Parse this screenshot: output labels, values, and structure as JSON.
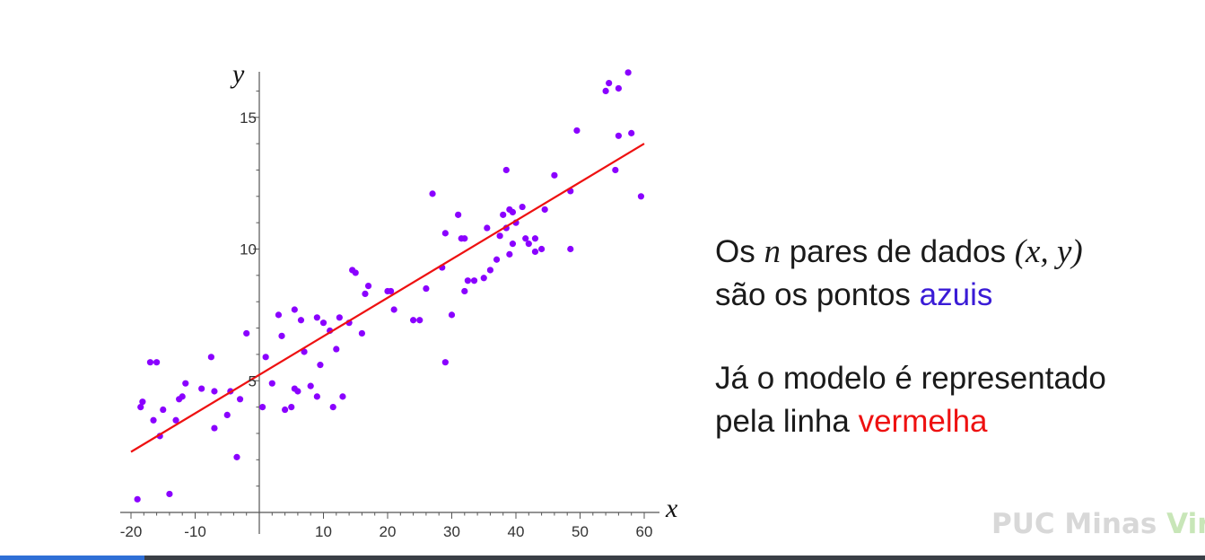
{
  "chart_data": {
    "type": "scatter",
    "xlabel": "x",
    "ylabel": "y",
    "x_ticks": [
      -20,
      -10,
      10,
      20,
      30,
      40,
      50,
      60
    ],
    "y_ticks": [
      5,
      10,
      15
    ],
    "xlim": [
      -21,
      61
    ],
    "ylim": [
      0.5,
      17
    ],
    "grid": false,
    "series": [
      {
        "kind": "points",
        "color": "#8a00ff",
        "points": [
          [
            -19,
            0.5
          ],
          [
            -18.5,
            4.0
          ],
          [
            -18.2,
            4.2
          ],
          [
            -17,
            5.7
          ],
          [
            -16.5,
            3.5
          ],
          [
            -16,
            5.7
          ],
          [
            -15.5,
            2.9
          ],
          [
            -15,
            3.9
          ],
          [
            -14,
            0.7
          ],
          [
            -13,
            3.5
          ],
          [
            -12.5,
            4.3
          ],
          [
            -12,
            4.4
          ],
          [
            -11.5,
            4.9
          ],
          [
            -9,
            4.7
          ],
          [
            -7.5,
            5.9
          ],
          [
            -7,
            3.2
          ],
          [
            -7,
            4.6
          ],
          [
            -5,
            3.7
          ],
          [
            -4.5,
            4.6
          ],
          [
            -3.5,
            2.1
          ],
          [
            -3,
            4.3
          ],
          [
            -2,
            6.8
          ],
          [
            0.5,
            4.0
          ],
          [
            1,
            5.9
          ],
          [
            2,
            4.9
          ],
          [
            3,
            7.5
          ],
          [
            3.5,
            6.7
          ],
          [
            4,
            3.9
          ],
          [
            5,
            4.0
          ],
          [
            5.5,
            4.7
          ],
          [
            5.5,
            7.7
          ],
          [
            6,
            4.6
          ],
          [
            6.5,
            7.3
          ],
          [
            7,
            6.1
          ],
          [
            8,
            4.8
          ],
          [
            9,
            7.4
          ],
          [
            9,
            4.4
          ],
          [
            9.5,
            5.6
          ],
          [
            10,
            7.2
          ],
          [
            11,
            6.9
          ],
          [
            11.5,
            4.0
          ],
          [
            12,
            6.2
          ],
          [
            12.5,
            7.4
          ],
          [
            13,
            4.4
          ],
          [
            14,
            7.2
          ],
          [
            14.5,
            9.2
          ],
          [
            15,
            9.1
          ],
          [
            16,
            6.8
          ],
          [
            16.5,
            8.3
          ],
          [
            17,
            8.6
          ],
          [
            20,
            8.4
          ],
          [
            20.5,
            8.4
          ],
          [
            21,
            7.7
          ],
          [
            24,
            7.3
          ],
          [
            25,
            7.3
          ],
          [
            26,
            8.5
          ],
          [
            27,
            12.1
          ],
          [
            28.5,
            9.3
          ],
          [
            29,
            10.6
          ],
          [
            29,
            5.7
          ],
          [
            30,
            7.5
          ],
          [
            31,
            11.3
          ],
          [
            31.5,
            10.4
          ],
          [
            32,
            10.4
          ],
          [
            32,
            8.4
          ],
          [
            32.5,
            8.8
          ],
          [
            33.5,
            8.8
          ],
          [
            35,
            8.9
          ],
          [
            35.5,
            10.8
          ],
          [
            36,
            9.2
          ],
          [
            37,
            9.6
          ],
          [
            37.5,
            10.5
          ],
          [
            38,
            11.3
          ],
          [
            38.5,
            13.0
          ],
          [
            38.5,
            10.8
          ],
          [
            39,
            11.5
          ],
          [
            39,
            9.8
          ],
          [
            39.5,
            10.2
          ],
          [
            39.5,
            11.4
          ],
          [
            40,
            11.0
          ],
          [
            41,
            11.6
          ],
          [
            41.5,
            10.4
          ],
          [
            42,
            10.2
          ],
          [
            43,
            10.4
          ],
          [
            43,
            9.9
          ],
          [
            44,
            10.0
          ],
          [
            44.5,
            11.5
          ],
          [
            46,
            12.8
          ],
          [
            48.5,
            12.2
          ],
          [
            48.5,
            10.0
          ],
          [
            49.5,
            14.5
          ],
          [
            54,
            16.0
          ],
          [
            54.5,
            16.3
          ],
          [
            55.5,
            13.0
          ],
          [
            56,
            16.1
          ],
          [
            56,
            14.3
          ],
          [
            57.5,
            16.7
          ],
          [
            58,
            14.4
          ],
          [
            59.5,
            12.0
          ]
        ]
      },
      {
        "kind": "line",
        "color": "#ee1111",
        "line": [
          [
            -20,
            2.3
          ],
          [
            60,
            14.0
          ]
        ]
      }
    ]
  },
  "text": {
    "line1_before": "Os",
    "line1_n": "n",
    "line1_middle": "pares de dados",
    "line1_xy": "(x, y)",
    "line2_before": "são os pontos",
    "line2_highlight": "azuis",
    "line3": "Já o modelo é representado",
    "line4_before": "pela linha",
    "line4_highlight": "vermelha"
  },
  "watermark": {
    "main": "PUC Minas",
    "accent": "Virt"
  },
  "player": {
    "progress": 0.12
  }
}
